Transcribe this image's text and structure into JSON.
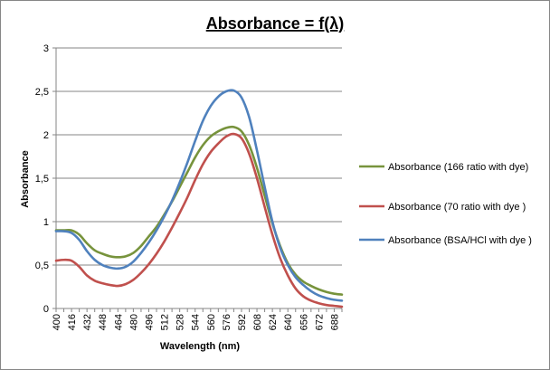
{
  "chart_data": {
    "type": "line",
    "title": "Absorbance = f(λ)",
    "xlabel": "Wavelength (nm)",
    "ylabel": "Absorbance",
    "ylim": [
      0,
      3
    ],
    "y_ticks": [
      "0",
      "0,5",
      "1",
      "1,5",
      "2",
      "2,5",
      "3"
    ],
    "x_ticks": [
      "400",
      "416",
      "432",
      "448",
      "464",
      "480",
      "496",
      "512",
      "528",
      "544",
      "560",
      "576",
      "592",
      "608",
      "624",
      "640",
      "656",
      "672",
      "688"
    ],
    "xlim": [
      400,
      696
    ],
    "grid": "horizontal",
    "legend_position": "right",
    "series": [
      {
        "name": "Absorbance (166 ratio with dye)",
        "color": "#77933C",
        "points": [
          [
            400,
            0.9
          ],
          [
            408,
            0.9
          ],
          [
            416,
            0.9
          ],
          [
            424,
            0.85
          ],
          [
            432,
            0.75
          ],
          [
            440,
            0.67
          ],
          [
            448,
            0.63
          ],
          [
            456,
            0.6
          ],
          [
            464,
            0.59
          ],
          [
            472,
            0.6
          ],
          [
            480,
            0.64
          ],
          [
            488,
            0.72
          ],
          [
            496,
            0.83
          ],
          [
            504,
            0.94
          ],
          [
            512,
            1.08
          ],
          [
            520,
            1.23
          ],
          [
            528,
            1.4
          ],
          [
            536,
            1.57
          ],
          [
            544,
            1.74
          ],
          [
            552,
            1.88
          ],
          [
            560,
            1.98
          ],
          [
            568,
            2.04
          ],
          [
            576,
            2.08
          ],
          [
            584,
            2.09
          ],
          [
            592,
            2.04
          ],
          [
            600,
            1.88
          ],
          [
            608,
            1.62
          ],
          [
            616,
            1.3
          ],
          [
            624,
            0.98
          ],
          [
            632,
            0.72
          ],
          [
            640,
            0.52
          ],
          [
            648,
            0.39
          ],
          [
            656,
            0.31
          ],
          [
            664,
            0.26
          ],
          [
            672,
            0.22
          ],
          [
            680,
            0.19
          ],
          [
            688,
            0.17
          ],
          [
            696,
            0.16
          ]
        ]
      },
      {
        "name": "Absorbance (70 ratio with  dye )",
        "color": "#C0504D",
        "points": [
          [
            400,
            0.55
          ],
          [
            408,
            0.56
          ],
          [
            416,
            0.55
          ],
          [
            424,
            0.48
          ],
          [
            432,
            0.38
          ],
          [
            440,
            0.32
          ],
          [
            448,
            0.29
          ],
          [
            456,
            0.27
          ],
          [
            464,
            0.26
          ],
          [
            472,
            0.28
          ],
          [
            480,
            0.33
          ],
          [
            488,
            0.41
          ],
          [
            496,
            0.51
          ],
          [
            504,
            0.63
          ],
          [
            512,
            0.77
          ],
          [
            520,
            0.93
          ],
          [
            528,
            1.1
          ],
          [
            536,
            1.28
          ],
          [
            544,
            1.48
          ],
          [
            552,
            1.66
          ],
          [
            560,
            1.8
          ],
          [
            568,
            1.9
          ],
          [
            576,
            1.98
          ],
          [
            584,
            2.01
          ],
          [
            592,
            1.96
          ],
          [
            600,
            1.78
          ],
          [
            608,
            1.5
          ],
          [
            616,
            1.17
          ],
          [
            624,
            0.85
          ],
          [
            632,
            0.58
          ],
          [
            640,
            0.38
          ],
          [
            648,
            0.23
          ],
          [
            656,
            0.14
          ],
          [
            664,
            0.09
          ],
          [
            672,
            0.06
          ],
          [
            680,
            0.04
          ],
          [
            688,
            0.03
          ],
          [
            696,
            0.02
          ]
        ]
      },
      {
        "name": "Absorbance (BSA/HCl with dye )",
        "color": "#4F81BD",
        "points": [
          [
            400,
            0.89
          ],
          [
            408,
            0.89
          ],
          [
            416,
            0.87
          ],
          [
            424,
            0.79
          ],
          [
            432,
            0.66
          ],
          [
            440,
            0.56
          ],
          [
            448,
            0.5
          ],
          [
            456,
            0.47
          ],
          [
            464,
            0.46
          ],
          [
            472,
            0.48
          ],
          [
            480,
            0.54
          ],
          [
            488,
            0.64
          ],
          [
            496,
            0.76
          ],
          [
            504,
            0.9
          ],
          [
            512,
            1.06
          ],
          [
            520,
            1.24
          ],
          [
            528,
            1.45
          ],
          [
            536,
            1.68
          ],
          [
            544,
            1.93
          ],
          [
            552,
            2.16
          ],
          [
            560,
            2.33
          ],
          [
            568,
            2.44
          ],
          [
            576,
            2.5
          ],
          [
            584,
            2.51
          ],
          [
            592,
            2.43
          ],
          [
            600,
            2.2
          ],
          [
            608,
            1.82
          ],
          [
            616,
            1.4
          ],
          [
            624,
            1.0
          ],
          [
            632,
            0.7
          ],
          [
            640,
            0.5
          ],
          [
            648,
            0.36
          ],
          [
            656,
            0.27
          ],
          [
            664,
            0.2
          ],
          [
            672,
            0.15
          ],
          [
            680,
            0.12
          ],
          [
            688,
            0.1
          ],
          [
            696,
            0.09
          ]
        ]
      }
    ]
  }
}
